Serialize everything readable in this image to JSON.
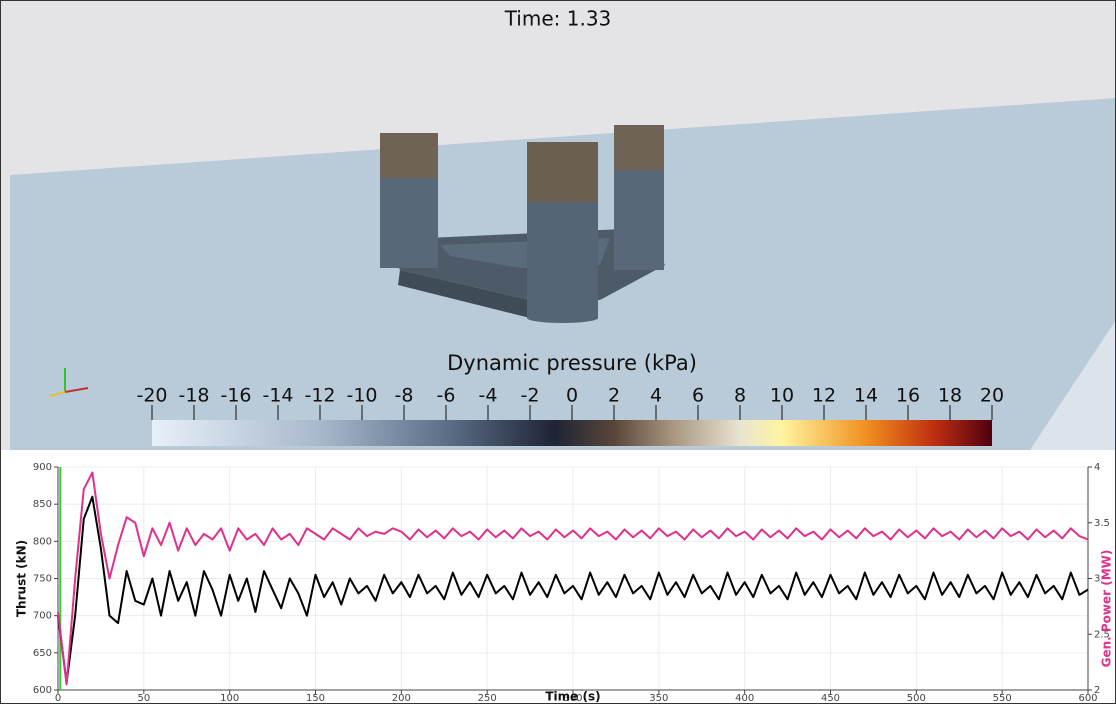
{
  "render_view": {
    "time_label": "Time: 1.33",
    "colorbar": {
      "title": "Dynamic pressure (kPa)",
      "range": [
        -20,
        20
      ],
      "ticks": [
        -20,
        -18,
        -16,
        -14,
        -12,
        -10,
        -8,
        -6,
        -4,
        -2,
        0,
        2,
        4,
        6,
        8,
        10,
        12,
        14,
        16,
        18,
        20
      ]
    }
  },
  "chart_data": {
    "type": "line",
    "x_label": "Time (s)",
    "y_label": "Thrust (kN)",
    "y2_label": "Gen. Power (MW)",
    "xlim": [
      0,
      600
    ],
    "xticks": [
      0,
      50,
      100,
      150,
      200,
      250,
      300,
      350,
      400,
      450,
      500,
      550,
      600
    ],
    "ylim": [
      600,
      900
    ],
    "yticks": [
      600,
      650,
      700,
      750,
      800,
      850,
      900
    ],
    "y2lim": [
      2,
      4
    ],
    "y2ticks": [
      2,
      2.5,
      3,
      3.5,
      4
    ],
    "grid": true,
    "marker_x": 1.33,
    "marker_color": "#3cc83c",
    "x": [
      0,
      5,
      10,
      15,
      20,
      25,
      30,
      35,
      40,
      45,
      50,
      55,
      60,
      65,
      70,
      75,
      80,
      85,
      90,
      95,
      100,
      105,
      110,
      115,
      120,
      125,
      130,
      135,
      140,
      145,
      150,
      155,
      160,
      165,
      170,
      175,
      180,
      185,
      190,
      195,
      200,
      205,
      210,
      215,
      220,
      225,
      230,
      235,
      240,
      245,
      250,
      255,
      260,
      265,
      270,
      275,
      280,
      285,
      290,
      295,
      300,
      305,
      310,
      315,
      320,
      325,
      330,
      335,
      340,
      345,
      350,
      355,
      360,
      365,
      370,
      375,
      380,
      385,
      390,
      395,
      400,
      405,
      410,
      415,
      420,
      425,
      430,
      435,
      440,
      445,
      450,
      455,
      460,
      465,
      470,
      475,
      480,
      485,
      490,
      495,
      500,
      505,
      510,
      515,
      520,
      525,
      530,
      535,
      540,
      545,
      550,
      555,
      560,
      565,
      570,
      575,
      580,
      585,
      590,
      595,
      600
    ],
    "series": [
      {
        "color": "#000000",
        "values": [
          700,
          610,
          700,
          830,
          860,
          790,
          700,
          690,
          760,
          720,
          715,
          750,
          700,
          760,
          720,
          745,
          700,
          760,
          735,
          700,
          755,
          720,
          750,
          705,
          760,
          735,
          710,
          750,
          730,
          700,
          755,
          725,
          745,
          715,
          750,
          730,
          740,
          720,
          755,
          730,
          745,
          725,
          755,
          730,
          740,
          722,
          758,
          728,
          745,
          725,
          755,
          730,
          740,
          722,
          758,
          728,
          745,
          725,
          755,
          730,
          740,
          722,
          758,
          728,
          745,
          725,
          755,
          730,
          740,
          722,
          758,
          728,
          745,
          725,
          755,
          730,
          740,
          722,
          758,
          728,
          745,
          725,
          755,
          730,
          740,
          722,
          758,
          728,
          745,
          725,
          755,
          730,
          740,
          722,
          758,
          728,
          745,
          725,
          755,
          730,
          740,
          722,
          758,
          728,
          745,
          725,
          755,
          730,
          740,
          722,
          758,
          728,
          745,
          725,
          755,
          730,
          740,
          722,
          758,
          728,
          735
        ]
      },
      {
        "color": "#e0308a",
        "axis": "y2",
        "values": [
          2.7,
          2.05,
          3.0,
          3.8,
          3.95,
          3.4,
          3.0,
          3.3,
          3.55,
          3.5,
          3.2,
          3.45,
          3.3,
          3.5,
          3.25,
          3.45,
          3.3,
          3.4,
          3.35,
          3.45,
          3.25,
          3.45,
          3.35,
          3.4,
          3.3,
          3.45,
          3.35,
          3.4,
          3.3,
          3.45,
          3.4,
          3.35,
          3.45,
          3.4,
          3.35,
          3.45,
          3.38,
          3.42,
          3.4,
          3.45,
          3.42,
          3.35,
          3.44,
          3.37,
          3.43,
          3.36,
          3.45,
          3.38,
          3.42,
          3.35,
          3.44,
          3.37,
          3.43,
          3.36,
          3.45,
          3.38,
          3.42,
          3.35,
          3.44,
          3.37,
          3.43,
          3.36,
          3.45,
          3.38,
          3.42,
          3.35,
          3.44,
          3.37,
          3.43,
          3.36,
          3.45,
          3.38,
          3.42,
          3.35,
          3.44,
          3.37,
          3.43,
          3.36,
          3.45,
          3.38,
          3.42,
          3.35,
          3.44,
          3.37,
          3.43,
          3.36,
          3.45,
          3.38,
          3.42,
          3.35,
          3.44,
          3.37,
          3.43,
          3.36,
          3.45,
          3.38,
          3.42,
          3.35,
          3.44,
          3.37,
          3.43,
          3.36,
          3.45,
          3.38,
          3.42,
          3.35,
          3.44,
          3.37,
          3.43,
          3.36,
          3.45,
          3.38,
          3.42,
          3.35,
          3.44,
          3.37,
          3.43,
          3.36,
          3.45,
          3.38,
          3.35
        ]
      }
    ]
  }
}
